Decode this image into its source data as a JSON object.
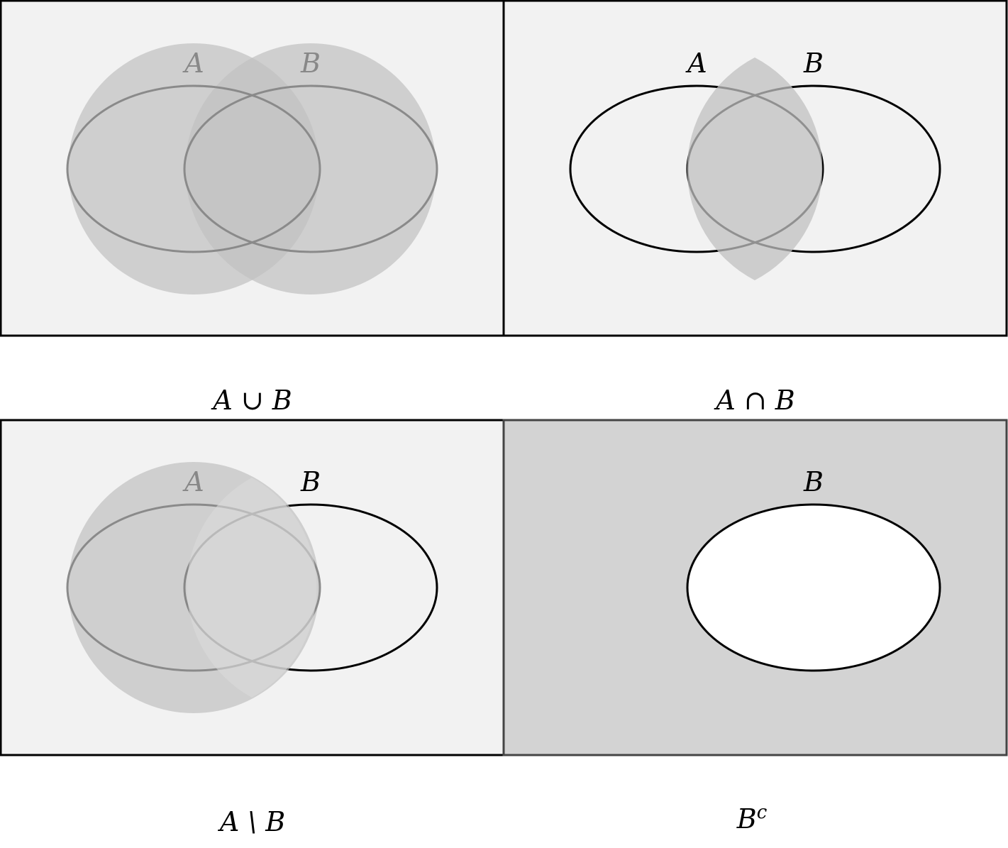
{
  "colors": {
    "panel_bg": "#f2f2f2",
    "shade": "#c0c0c0",
    "complement_bg": "#d3d3d3",
    "outline": "#000000",
    "faded_outline": "#8a8a8a",
    "faded_label": "#888888",
    "hole": "#ffffff"
  },
  "panels": [
    {
      "id": "union",
      "caption": "A ∪ B",
      "label_a": "A",
      "label_b": "B"
    },
    {
      "id": "intersection",
      "caption": "A ∩ B",
      "label_a": "A",
      "label_b": "B"
    },
    {
      "id": "difference",
      "caption": "A \\ B",
      "label_a": "A",
      "label_b": "B"
    },
    {
      "id": "complement",
      "caption_base": "B",
      "caption_sup": "c",
      "label_b": "B"
    }
  ]
}
